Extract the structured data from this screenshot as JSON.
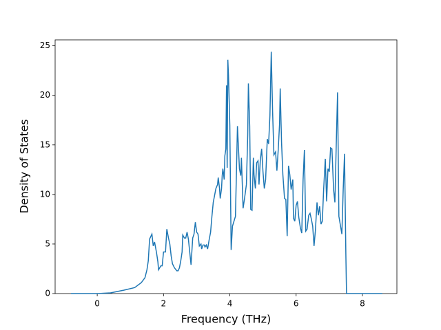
{
  "chart_data": {
    "type": "line",
    "x_label": "Frequency (THz)",
    "y_label": "Density of States",
    "xlim": [
      -1.27,
      9.04
    ],
    "ylim": [
      0,
      25.6
    ],
    "xticks": [
      0,
      2,
      4,
      6,
      8
    ],
    "yticks": [
      0,
      5,
      10,
      15,
      20,
      25
    ],
    "series": [
      {
        "color": "#1f77b4",
        "x": [
          -0.79,
          0,
          0.4,
          0.81,
          1.13,
          1.33,
          1.44,
          1.5,
          1.54,
          1.58,
          1.65,
          1.69,
          1.73,
          1.79,
          1.83,
          1.85,
          1.92,
          1.96,
          2.0,
          2.06,
          2.1,
          2.15,
          2.19,
          2.23,
          2.27,
          2.33,
          2.4,
          2.44,
          2.48,
          2.52,
          2.56,
          2.58,
          2.63,
          2.67,
          2.71,
          2.75,
          2.79,
          2.83,
          2.88,
          2.92,
          2.96,
          3.0,
          3.04,
          3.08,
          3.13,
          3.15,
          3.19,
          3.23,
          3.25,
          3.29,
          3.33,
          3.38,
          3.42,
          3.46,
          3.5,
          3.54,
          3.58,
          3.63,
          3.65,
          3.69,
          3.71,
          3.75,
          3.77,
          3.79,
          3.81,
          3.83,
          3.85,
          3.88,
          3.9,
          3.92,
          3.94,
          3.96,
          4.0,
          4.04,
          4.08,
          4.17,
          4.23,
          4.29,
          4.33,
          4.35,
          4.4,
          4.44,
          4.5,
          4.54,
          4.56,
          4.6,
          4.63,
          4.67,
          4.71,
          4.73,
          4.77,
          4.81,
          4.85,
          4.88,
          4.92,
          4.96,
          5.0,
          5.04,
          5.08,
          5.13,
          5.17,
          5.21,
          5.25,
          5.29,
          5.33,
          5.38,
          5.42,
          5.46,
          5.5,
          5.52,
          5.56,
          5.6,
          5.65,
          5.69,
          5.73,
          5.77,
          5.81,
          5.85,
          5.9,
          5.92,
          5.96,
          6.0,
          6.04,
          6.08,
          6.13,
          6.17,
          6.21,
          6.25,
          6.29,
          6.33,
          6.38,
          6.42,
          6.46,
          6.5,
          6.54,
          6.58,
          6.63,
          6.67,
          6.71,
          6.75,
          6.79,
          6.83,
          6.88,
          6.92,
          6.96,
          7.0,
          7.04,
          7.08,
          7.13,
          7.17,
          7.21,
          7.25,
          7.29,
          7.33,
          7.38,
          7.42,
          7.46,
          7.5,
          7.52,
          8.6
        ],
        "values": [
          0,
          0,
          0.07,
          0.35,
          0.6,
          1.1,
          1.6,
          2.4,
          3.3,
          5.5,
          6.0,
          4.8,
          5.2,
          4.1,
          3.2,
          2.4,
          2.8,
          2.8,
          4.2,
          4.2,
          6.5,
          5.6,
          5.0,
          3.8,
          3.0,
          2.6,
          2.3,
          2.3,
          2.6,
          3.3,
          4.2,
          5.9,
          5.6,
          5.6,
          6.2,
          5.5,
          4.2,
          2.9,
          5.6,
          6.0,
          7.2,
          6.2,
          6.0,
          4.8,
          5.0,
          4.5,
          4.9,
          4.9,
          4.7,
          4.9,
          4.5,
          5.5,
          6.2,
          7.8,
          9.2,
          9.9,
          10.6,
          11.0,
          11.7,
          10.6,
          9.6,
          10.6,
          11.9,
          12.6,
          12.1,
          11.5,
          13.9,
          14.6,
          21.0,
          12.7,
          23.6,
          22.0,
          17.0,
          4.4,
          6.8,
          7.8,
          16.9,
          12.6,
          11.9,
          13.7,
          8.6,
          9.5,
          11.0,
          16.0,
          21.2,
          16.9,
          8.5,
          8.4,
          13.7,
          12.0,
          10.6,
          13.2,
          13.4,
          11.0,
          13.5,
          14.6,
          12.3,
          10.6,
          11.5,
          15.6,
          15.1,
          18.0,
          24.4,
          18.4,
          14.0,
          14.3,
          12.4,
          14.5,
          17.1,
          20.7,
          15.3,
          12.0,
          9.6,
          9.5,
          5.8,
          12.9,
          12.0,
          10.5,
          11.5,
          7.6,
          7.3,
          8.9,
          9.3,
          7.7,
          6.6,
          6.1,
          11.5,
          14.5,
          6.3,
          6.5,
          7.9,
          8.1,
          7.5,
          6.8,
          4.8,
          6.3,
          9.2,
          7.9,
          8.8,
          7.0,
          7.3,
          10.5,
          13.6,
          9.3,
          12.6,
          12.3,
          14.7,
          14.6,
          10.5,
          9.2,
          15.0,
          20.3,
          7.8,
          7.0,
          6.0,
          10.5,
          14.1,
          4.0,
          0,
          0
        ]
      }
    ]
  }
}
